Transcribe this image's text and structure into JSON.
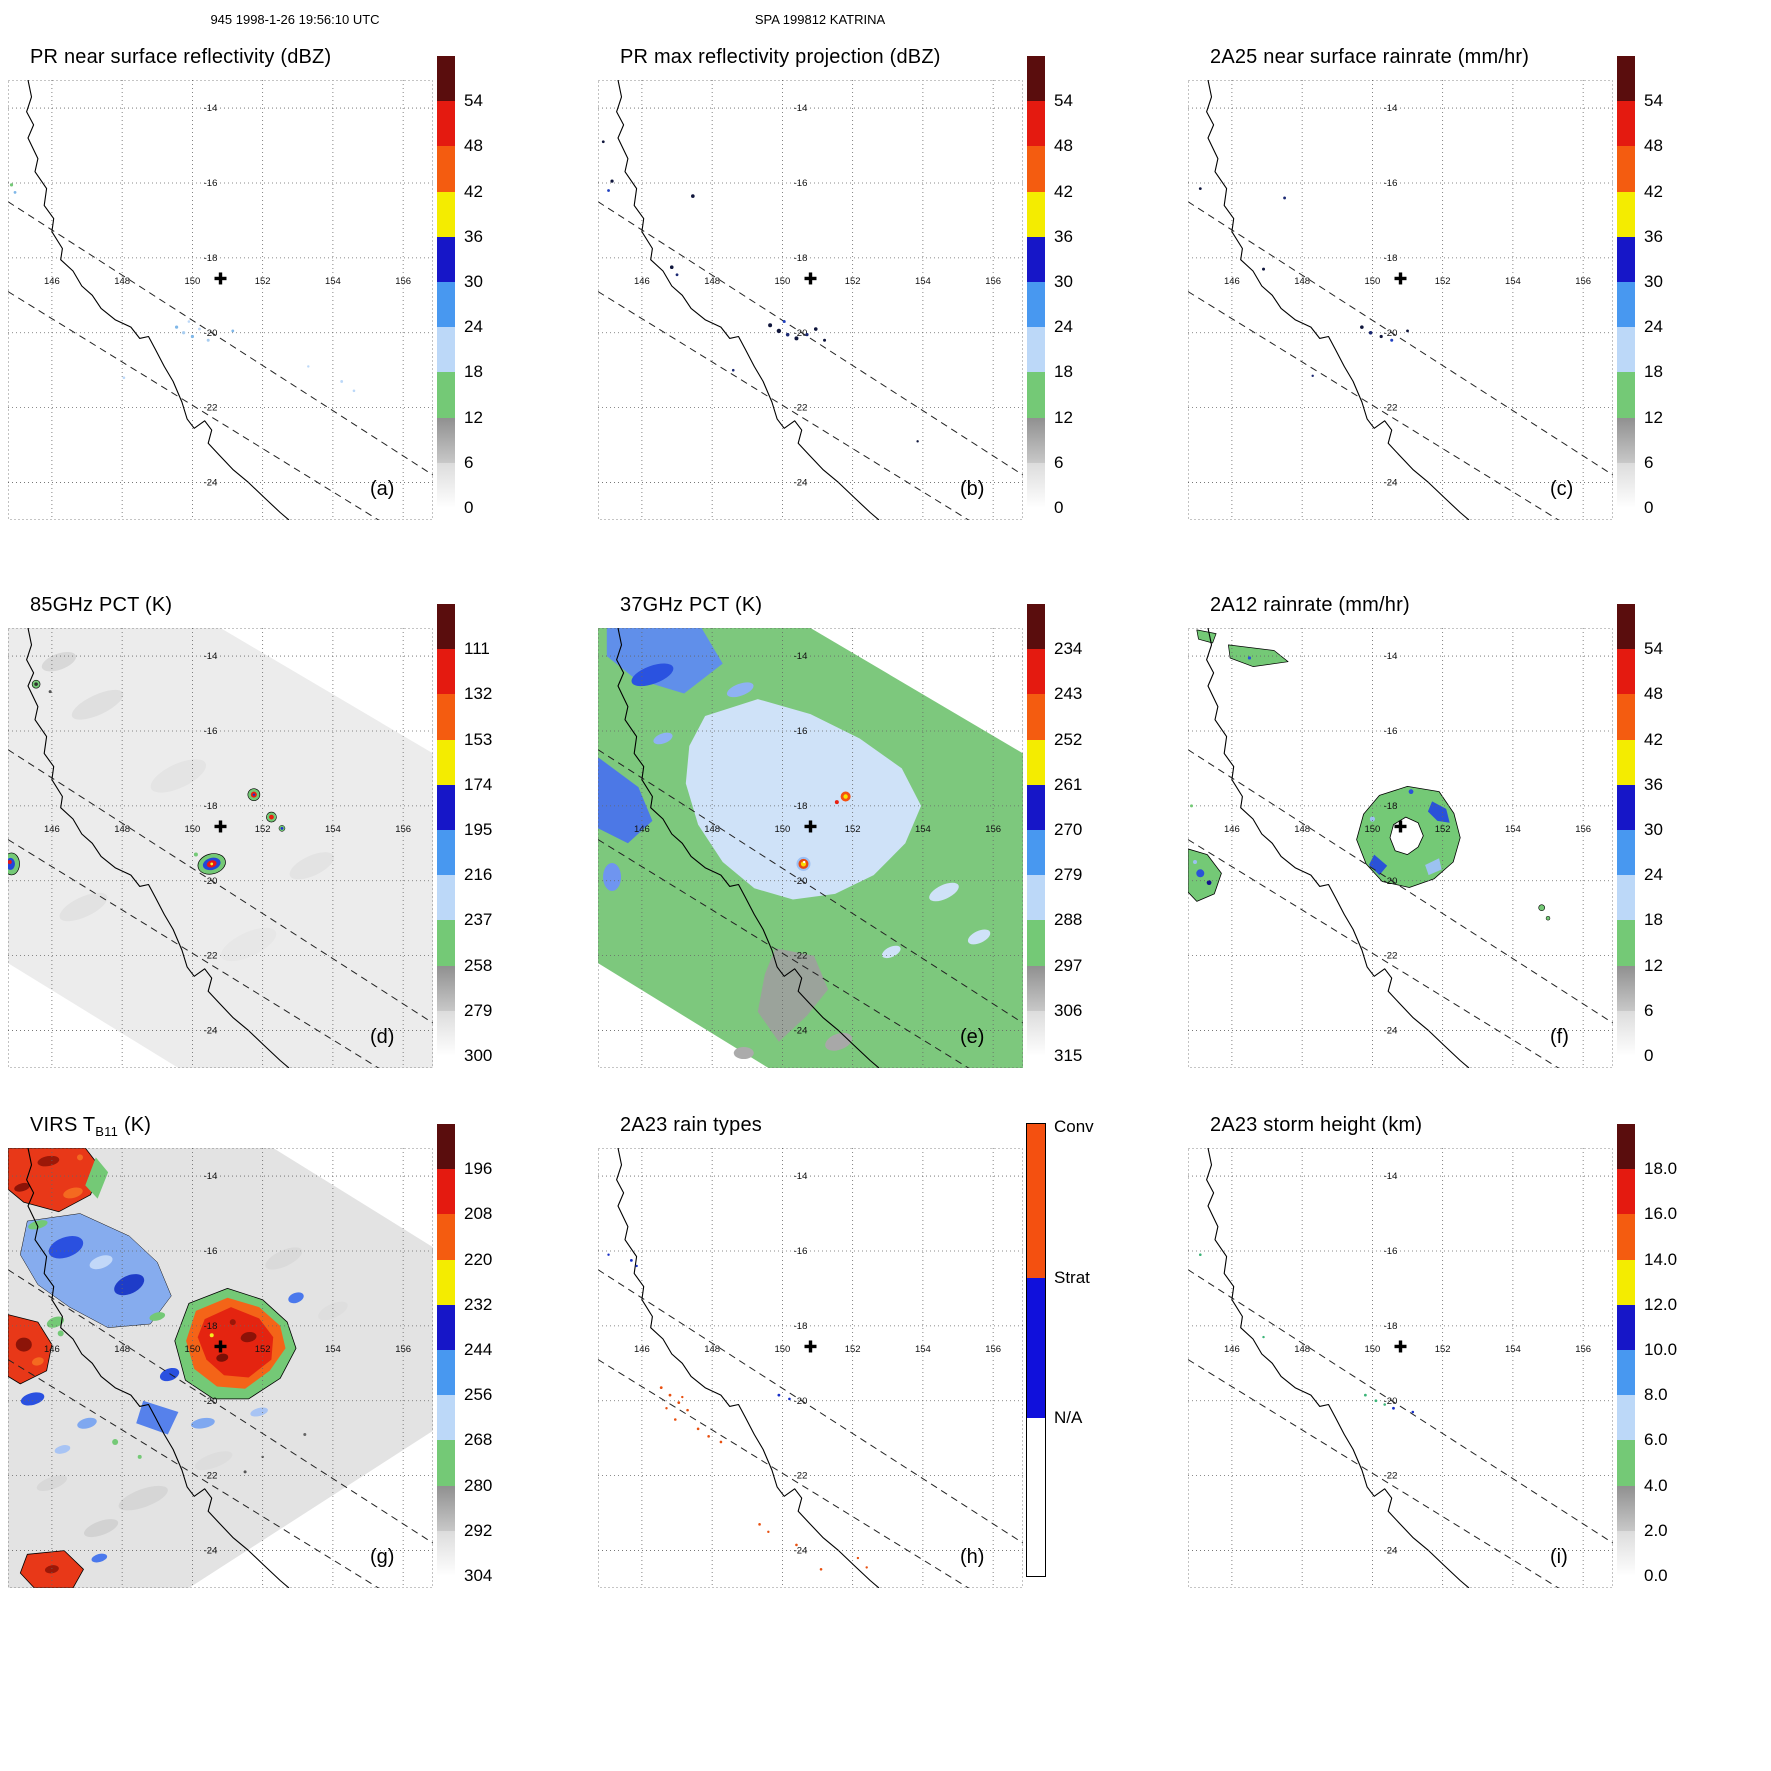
{
  "header": {
    "left": "945 1998-1-26 19:56:10 UTC",
    "center": "SPA 199812 KATRINA"
  },
  "geo": {
    "extent": {
      "lon_min": 144.75,
      "lon_max": 156.85,
      "lat_min": -25.0,
      "lat_max": -13.25
    },
    "lon_ticks": [
      "146",
      "148",
      "150",
      "152",
      "154",
      "156"
    ],
    "lat_ticks": [
      "-14",
      "-16",
      "-18",
      "-20",
      "-22",
      "-24"
    ],
    "marker": {
      "lon": 150.8,
      "lat": -18.55,
      "symbol": "plus"
    },
    "swath_lines": [
      [
        [
          144.75,
          -16.5
        ],
        [
          156.85,
          -23.8
        ]
      ],
      [
        [
          144.75,
          -18.9
        ],
        [
          155.3,
          -25.0
        ]
      ]
    ]
  },
  "panels": [
    {
      "id": "a",
      "label": "(a)",
      "title": "PR near surface reflectivity (dBZ)",
      "colorbar": "dbz"
    },
    {
      "id": "b",
      "label": "(b)",
      "title": "PR max reflectivity projection (dBZ)",
      "colorbar": "dbz"
    },
    {
      "id": "c",
      "label": "(c)",
      "title": "2A25 near surface rainrate (mm/hr)",
      "colorbar": "dbz"
    },
    {
      "id": "d",
      "label": "(d)",
      "title": "85GHz PCT (K)",
      "colorbar": "pct85"
    },
    {
      "id": "e",
      "label": "(e)",
      "title": "37GHz PCT (K)",
      "colorbar": "pct37"
    },
    {
      "id": "f",
      "label": "(f)",
      "title": "2A12 rainrate (mm/hr)",
      "colorbar": "dbz"
    },
    {
      "id": "g",
      "label": "(g)",
      "title": "VIRS TB11 (K)",
      "title_pre": "VIRS T",
      "title_sub": "B11",
      "title_post": " (K)",
      "colorbar": "virs"
    },
    {
      "id": "h",
      "label": "(h)",
      "title": "2A23 rain types",
      "colorbar": "raintype"
    },
    {
      "id": "i",
      "label": "(i)",
      "title": "2A23 storm height (km)",
      "colorbar": "height"
    }
  ],
  "colorbars": {
    "scale_colors_top_to_bottom": [
      "#5a0d0d",
      "#e41a10",
      "#f45c10",
      "#f4ec00",
      "#1616c8",
      "#4898f0",
      "#bcd8f8",
      "#74c976",
      "linear-gradient(#909090,#c8c8c8)",
      "linear-gradient(#dcdcdc,#ffffff)"
    ],
    "dbz": {
      "ticks": [
        "54",
        "48",
        "42",
        "36",
        "30",
        "24",
        "18",
        "12",
        "6",
        "0"
      ]
    },
    "pct85": {
      "ticks": [
        "111",
        "132",
        "153",
        "174",
        "195",
        "216",
        "237",
        "258",
        "279",
        "300"
      ]
    },
    "pct37": {
      "ticks": [
        "234",
        "243",
        "252",
        "261",
        "270",
        "279",
        "288",
        "297",
        "306",
        "315"
      ]
    },
    "virs": {
      "ticks": [
        "196",
        "208",
        "220",
        "232",
        "244",
        "256",
        "268",
        "280",
        "292",
        "304"
      ]
    },
    "height": {
      "ticks": [
        "18.0",
        "16.0",
        "14.0",
        "12.0",
        "10.0",
        "8.0",
        "6.0",
        "4.0",
        "2.0",
        "0.0"
      ]
    },
    "raintype": {
      "segments": [
        {
          "label": "Conv",
          "color": "#f45010",
          "frac": 0.34
        },
        {
          "label": "Strat",
          "color": "#1010dc",
          "frac": 0.31
        },
        {
          "label": "N/A",
          "color": "#ffffff",
          "frac": 0.35
        }
      ]
    }
  },
  "chart_data": {
    "type": "heatmap",
    "layout": "3x3 map panels, each with its own vertical colorbar",
    "overpass": {
      "orbit": "945",
      "datetime_utc": "1998-1-26 19:56:10",
      "storm": "SPA 199812 KATRINA"
    },
    "shared_map": {
      "lon_range": [
        144.75,
        156.85
      ],
      "lat_range": [
        -25.0,
        -13.25
      ],
      "lon_gridlines": [
        146,
        148,
        150,
        152,
        154,
        156
      ],
      "lat_gridlines": [
        -14,
        -16,
        -18,
        -20,
        -22,
        -24
      ],
      "grid_style": "dotted",
      "coastline": "Queensland (Australia) east coast, drawn in black",
      "storm_center_marker": {
        "lon": 150.8,
        "lat": -18.55,
        "symbol": "plus"
      },
      "pr_swath_edges_dashed": [
        [
          [
            144.75,
            -16.5
          ],
          [
            156.85,
            -23.8
          ]
        ],
        [
          [
            144.75,
            -18.9
          ],
          [
            155.3,
            -25.0
          ]
        ]
      ]
    },
    "panels": [
      {
        "panel": "(a)",
        "title": "PR near surface reflectivity (dBZ)",
        "units": "dBZ",
        "scale_ticks": [
          54,
          48,
          42,
          36,
          30,
          24,
          18,
          12,
          6,
          0
        ],
        "features": "mostly echo-free; isolated weak 18-30 dBZ echoes clustered near 149.6-150.5E, 19.7-20.2S, a few pale-blue pixels near 154.3E 21.4S and green specks near 144.9E 16.1S"
      },
      {
        "panel": "(b)",
        "title": "PR max reflectivity projection (dBZ)",
        "units": "dBZ",
        "scale_ticks": [
          54,
          48,
          42,
          36,
          30,
          24,
          18,
          12,
          6,
          0
        ],
        "features": "scattered dark (>=30 dBZ) pixels near 149.7-151.2E 19.6-20.3S, along coast near 146.9E 18.3S, and isolated dots near 147.5E 16.3S and 145.1E 16.1S"
      },
      {
        "panel": "(c)",
        "title": "2A25 near surface rainrate (mm/hr)",
        "units": "mm/hr",
        "scale_ticks": [
          54,
          48,
          42,
          36,
          30,
          24,
          18,
          12,
          6,
          0
        ],
        "features": "isolated light rain pixels near 150E 20S and along the coast; field mostly rain-free"
      },
      {
        "panel": "(d)",
        "title": "85GHz PCT (K)",
        "units": "K",
        "scale_ticks": [
          111,
          132,
          153,
          174,
          195,
          216,
          237,
          258,
          279,
          300
        ],
        "features": "TMI swath mostly 280-300 K (light gray); convective depressions (<216 K cores ringed by ~237 K green) at 151.8E 17.7S, 152.3E 18.3S, main blob 150.6E 19.6S, and at swath west edge near 144.8E 19.6S; small cold spot 145.6E 14.8S"
      },
      {
        "panel": "(e)",
        "title": "37GHz PCT (K)",
        "units": "K",
        "scale_ticks": [
          234,
          243,
          252,
          261,
          270,
          279,
          288,
          297,
          306,
          315
        ],
        "features": "background ~285-293 K (green); large pale-blue ~275-280 K region around 148-153.5E 15.5-20.5S; deeper blue 265-272 K patches NW corner and west edge; warm emission spots (<252 K ice scattering, orange/red with yellow centers) at 151.8E 17.8S and eye region 150.6E 19.6S; gray ~297-306 K land patches near 150-151.5E 22-24.5S"
      },
      {
        "panel": "(f)",
        "title": "2A12 rainrate (mm/hr)",
        "units": "mm/hr",
        "scale_ticks": [
          54,
          48,
          42,
          36,
          30,
          24,
          18,
          12,
          6,
          0
        ],
        "features": "annular (ring-shaped) rain region of ~2-10 mm/hr (green) with embedded 12-24 mm/hr blue patches encircling the center near 151E 18.9S with rain-free eye; rain patch at swath west edge 144.8-145.7E 19.2-20.5S with blue core; thin green streaks near 146-147.6E 13.7-14.2S and small cells near 154.9E 20.8S"
      },
      {
        "panel": "(g)",
        "title": "VIRS TB11 (K)",
        "units": "K",
        "scale_ticks": [
          196,
          208,
          220,
          232,
          244,
          256,
          268,
          280,
          292,
          304
        ],
        "features": "cold cloud tops <220 K (red/dark-red, black contoured) in NW corner, at west edge 17.7-19.5S, bottom-left ~145.3-146.9E 24-25S, and large central dense overcast 149.5-152.9E 17-20S with <208 K cores; 244-268 K (blue/green) mottled band 145-149.5E 15-18S and south of the CDO; warm surface ~290-304 K light gray elsewhere"
      },
      {
        "panel": "(h)",
        "title": "2A23 rain types",
        "units": "category",
        "scale_ticks": [
          "Conv",
          "Strat",
          "N/A"
        ],
        "features": "sparse convective (red) pixels along 146.5-148.3E 19.6-21.1S and near 149.3-152.4E 23.3-24.5S; a few stratiform (blue) pixels near 149.9-150.2E 19.9S and 145.7E 16.3S"
      },
      {
        "panel": "(i)",
        "title": "2A23 storm height (km)",
        "units": "km",
        "scale_ticks": [
          18.0,
          16.0,
          14.0,
          12.0,
          10.0,
          8.0,
          6.0,
          4.0,
          2.0,
          0.0
        ],
        "features": "isolated storm-height pixels of ~4-10 km near 149.8-151.2E 19.8-20.3S and a few specks along the coast; field otherwise empty"
      }
    ]
  }
}
